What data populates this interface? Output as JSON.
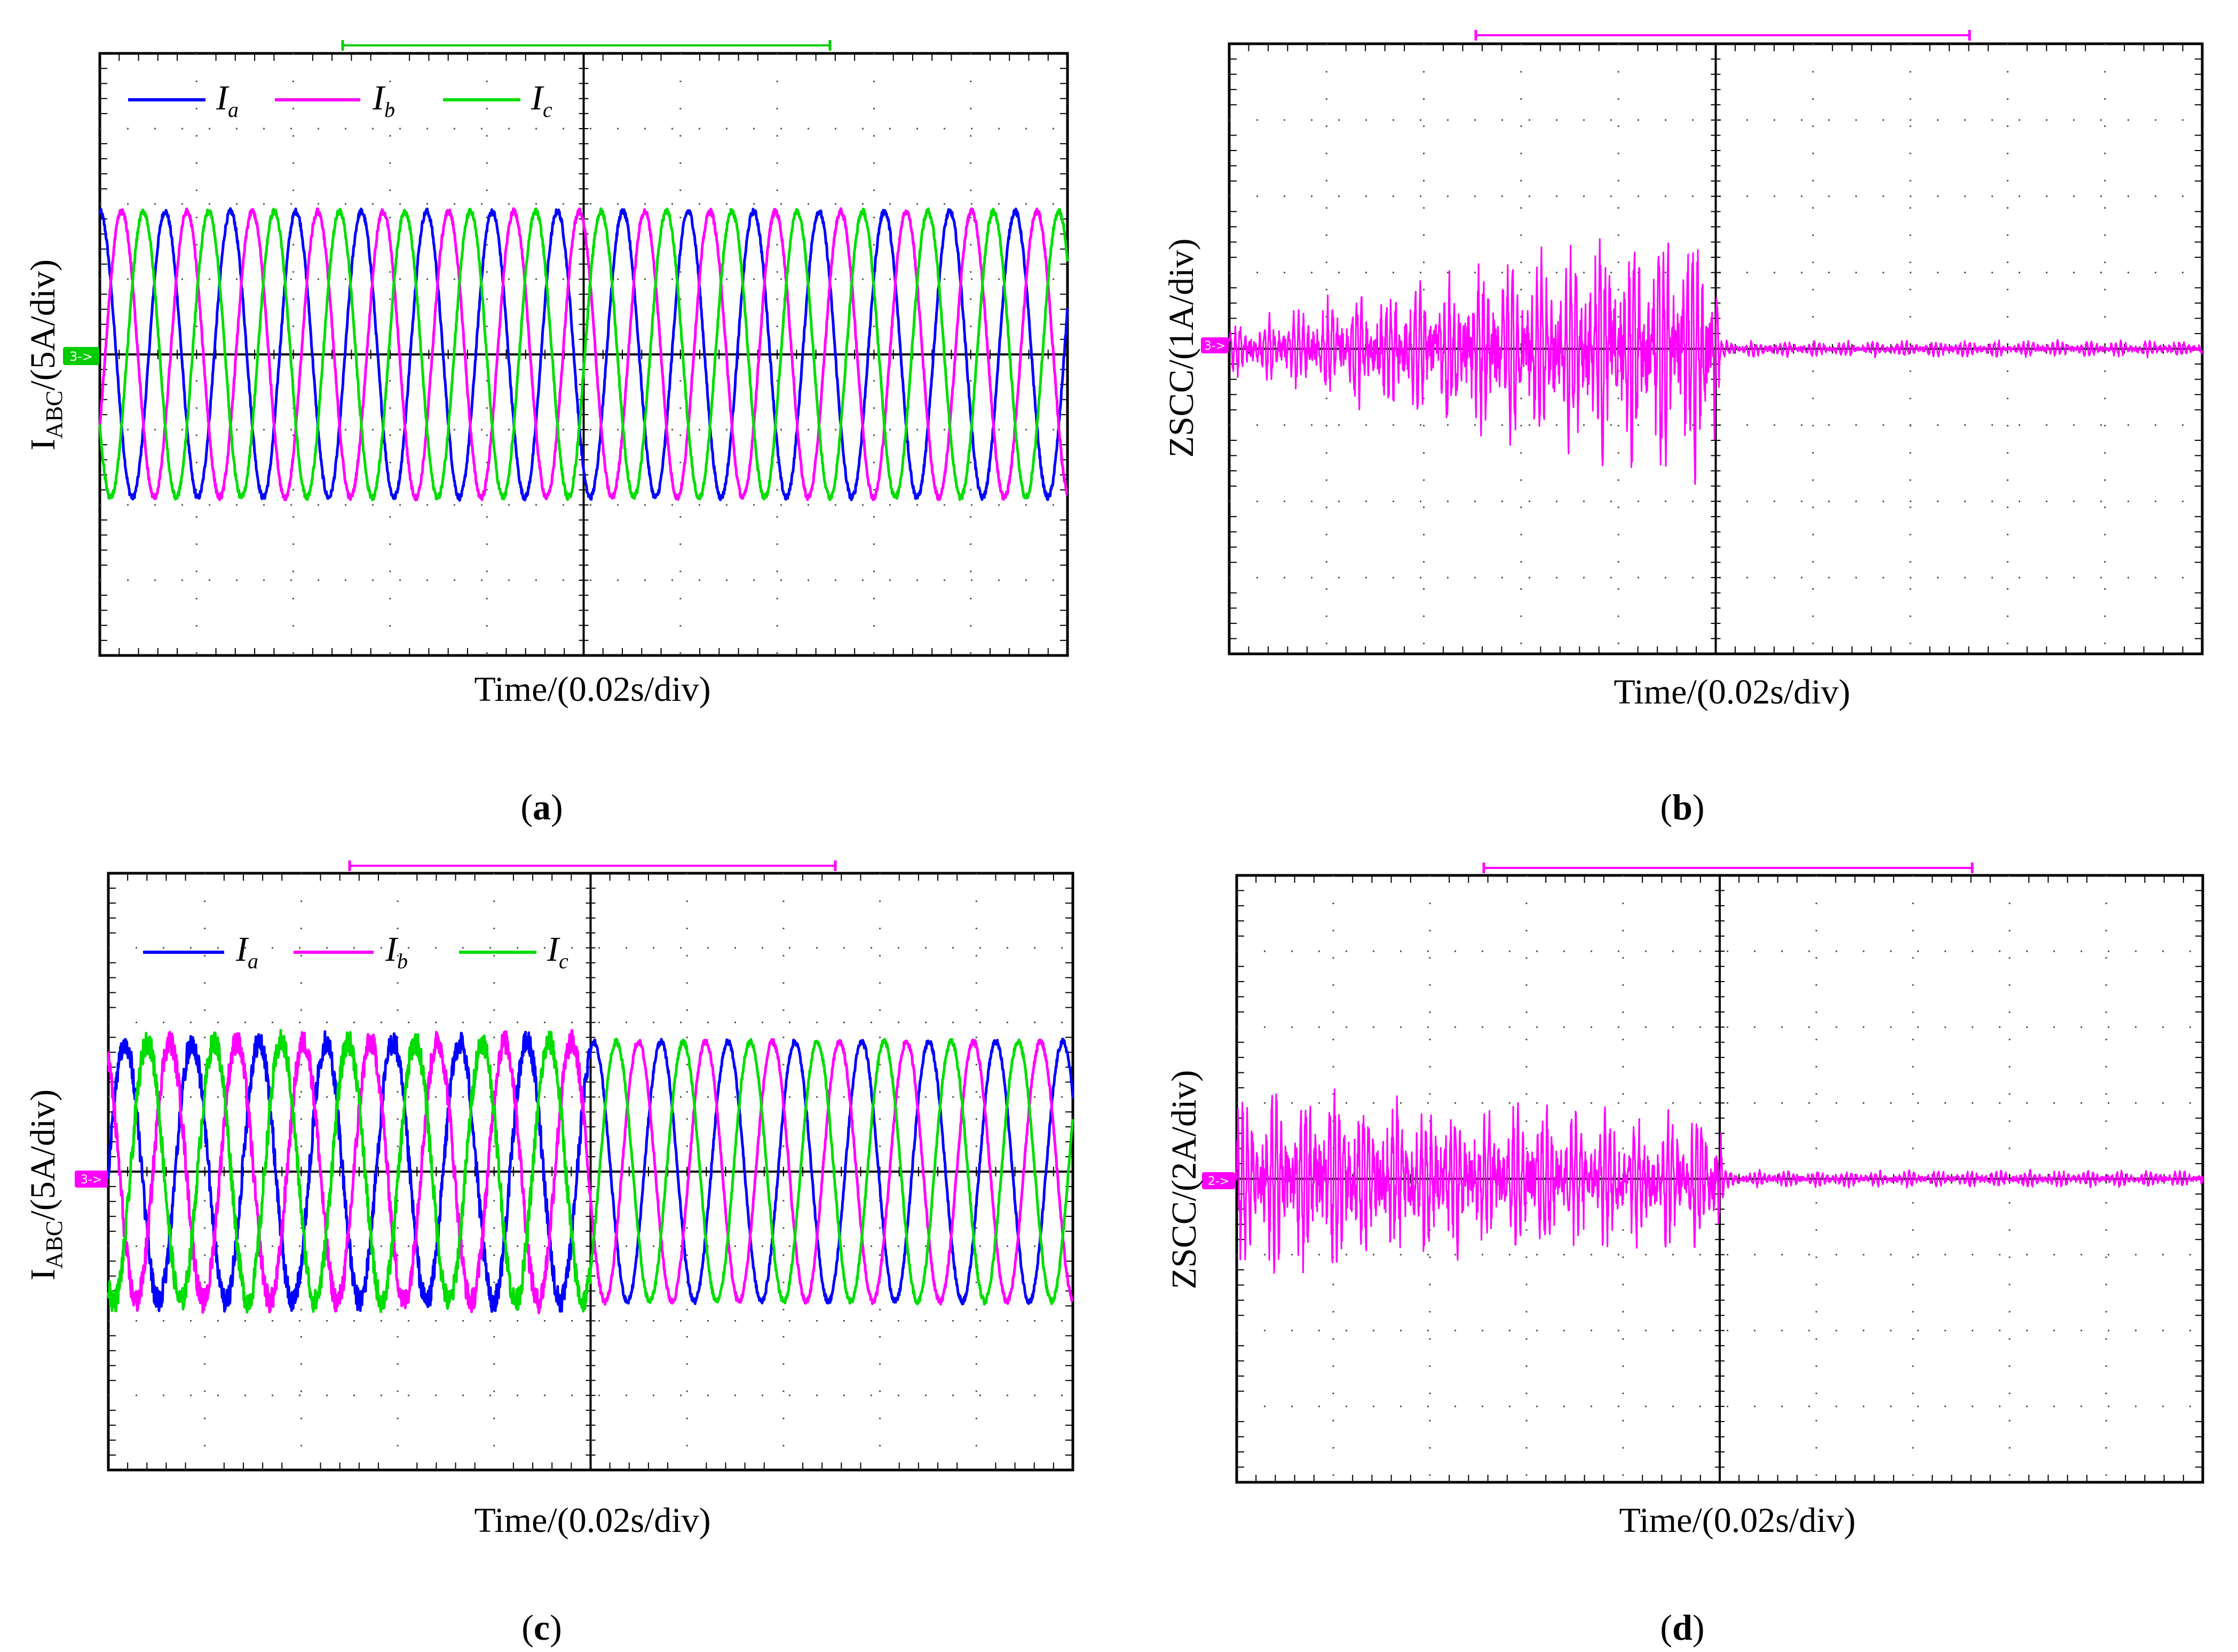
{
  "figure": {
    "panels": [
      {
        "id": "a",
        "caption": "a",
        "xlabel": "Time/(0.02s/div)",
        "ylabel_main": "I",
        "ylabel_sub": "ABC",
        "ylabel_rest": "/(5A/div)",
        "marker_label": "3->",
        "marker_color": "#00cc00",
        "cursor_color": "#00cc00"
      },
      {
        "id": "b",
        "caption": "b",
        "xlabel": "Time/(0.02s/div)",
        "ylabel": "ZSCC/(1A/div)",
        "marker_label": "3->",
        "marker_color": "#ff00ff",
        "cursor_color": "#ff00ff"
      },
      {
        "id": "c",
        "caption": "c",
        "xlabel": "Time/(0.02s/div)",
        "ylabel_main": "I",
        "ylabel_sub": "ABC",
        "ylabel_rest": "/(5A/div)",
        "marker_label": "3->",
        "marker_color": "#ff00ff",
        "cursor_color": "#ff00ff"
      },
      {
        "id": "d",
        "caption": "d",
        "xlabel": "Time/(0.02s/div)",
        "ylabel": "ZSCC/(2A/div)",
        "marker_label": "2->",
        "marker_color": "#ff00ff",
        "cursor_color": "#ff00ff"
      }
    ],
    "legend": [
      {
        "main": "I",
        "sub": "a",
        "color": "#0000ff"
      },
      {
        "main": "I",
        "sub": "b",
        "color": "#ff00ff"
      },
      {
        "main": "I",
        "sub": "c",
        "color": "#00dd00"
      }
    ]
  },
  "chart_data": [
    {
      "type": "line",
      "panel": "a",
      "title": "",
      "xlabel": "Time/(0.02s/div)",
      "ylabel": "IABC/(5A/div)",
      "x_divisions": 10,
      "y_divisions": 8,
      "xlim": [
        0,
        0.2
      ],
      "ylim": [
        -20,
        20
      ],
      "series": [
        {
          "name": "Ia",
          "color": "#0000ff",
          "amplitude_A": 9.5,
          "frequency_hz": 74,
          "phase_deg": 90
        },
        {
          "name": "Ib",
          "color": "#ff00ff",
          "amplitude_A": 9.5,
          "frequency_hz": 74,
          "phase_deg": -30
        },
        {
          "name": "Ic",
          "color": "#00dd00",
          "amplitude_A": 9.5,
          "frequency_hz": 74,
          "phase_deg": 210
        }
      ]
    },
    {
      "type": "line",
      "panel": "b",
      "title": "",
      "xlabel": "Time/(0.02s/div)",
      "ylabel": "ZSCC/(1A/div)",
      "x_divisions": 10,
      "y_divisions": 8,
      "xlim": [
        0,
        0.2
      ],
      "ylim": [
        -4,
        4
      ],
      "series": [
        {
          "name": "ZSCC",
          "color": "#ff00ff",
          "envelope_time_s": [
            0,
            0.02,
            0.05,
            0.07,
            0.09,
            0.1,
            0.101,
            0.2
          ],
          "envelope_amp_A": [
            0.35,
            0.7,
            1.2,
            1.6,
            1.85,
            2.0,
            0.12,
            0.12
          ]
        }
      ]
    },
    {
      "type": "line",
      "panel": "c",
      "title": "",
      "xlabel": "Time/(0.02s/div)",
      "ylabel": "IABC/(5A/div)",
      "x_divisions": 10,
      "y_divisions": 8,
      "xlim": [
        0,
        0.2
      ],
      "ylim": [
        -20,
        20
      ],
      "series": [
        {
          "name": "Ia",
          "color": "#0000ff",
          "amplitude_A": 8.7,
          "frequency_hz": 72,
          "phase_deg": 0
        },
        {
          "name": "Ib",
          "color": "#ff00ff",
          "amplitude_A": 8.7,
          "frequency_hz": 72,
          "phase_deg": 120
        },
        {
          "name": "Ic",
          "color": "#00dd00",
          "amplitude_A": 8.7,
          "frequency_hz": 72,
          "phase_deg": 240
        }
      ]
    },
    {
      "type": "line",
      "panel": "d",
      "title": "",
      "xlabel": "Time/(0.02s/div)",
      "ylabel": "ZSCC/(2A/div)",
      "x_divisions": 10,
      "y_divisions": 8,
      "xlim": [
        0,
        0.2
      ],
      "ylim": [
        -8,
        8
      ],
      "series": [
        {
          "name": "ZSCC",
          "color": "#ff00ff",
          "envelope_time_s": [
            0,
            0.02,
            0.05,
            0.08,
            0.1,
            0.101,
            0.2
          ],
          "envelope_amp_A": [
            2.6,
            2.7,
            2.2,
            2.0,
            2.2,
            0.25,
            0.25
          ]
        }
      ]
    }
  ]
}
